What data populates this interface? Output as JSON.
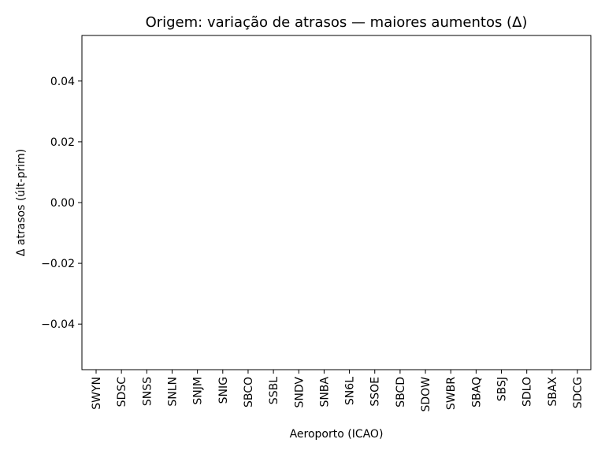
{
  "chart_data": {
    "type": "bar",
    "title": "Origem: variação de atrasos — maiores aumentos (Δ)",
    "xlabel": "Aeroporto (ICAO)",
    "ylabel": "Δ atrasos (últ-prim)",
    "categories": [
      "SWYN",
      "SDSC",
      "SNSS",
      "SNLN",
      "SNJM",
      "SNIG",
      "SBCO",
      "SSBL",
      "SNDV",
      "SNBA",
      "SN6L",
      "SSOE",
      "SBCD",
      "SDOW",
      "SWBR",
      "SBAQ",
      "SBSJ",
      "SDLO",
      "SBAX",
      "SDCG"
    ],
    "values": [
      0,
      0,
      0,
      0,
      0,
      0,
      0,
      0,
      0,
      0,
      0,
      0,
      0,
      0,
      0,
      0,
      0,
      0,
      0,
      0
    ],
    "yticks": [
      "0.04",
      "0.02",
      "0.00",
      "−0.02",
      "−0.04"
    ],
    "ytick_values": [
      0.04,
      0.02,
      0.0,
      -0.02,
      -0.04
    ],
    "ylim": [
      -0.055,
      0.055
    ],
    "grid": false,
    "bar_color": "#1f77b4"
  }
}
